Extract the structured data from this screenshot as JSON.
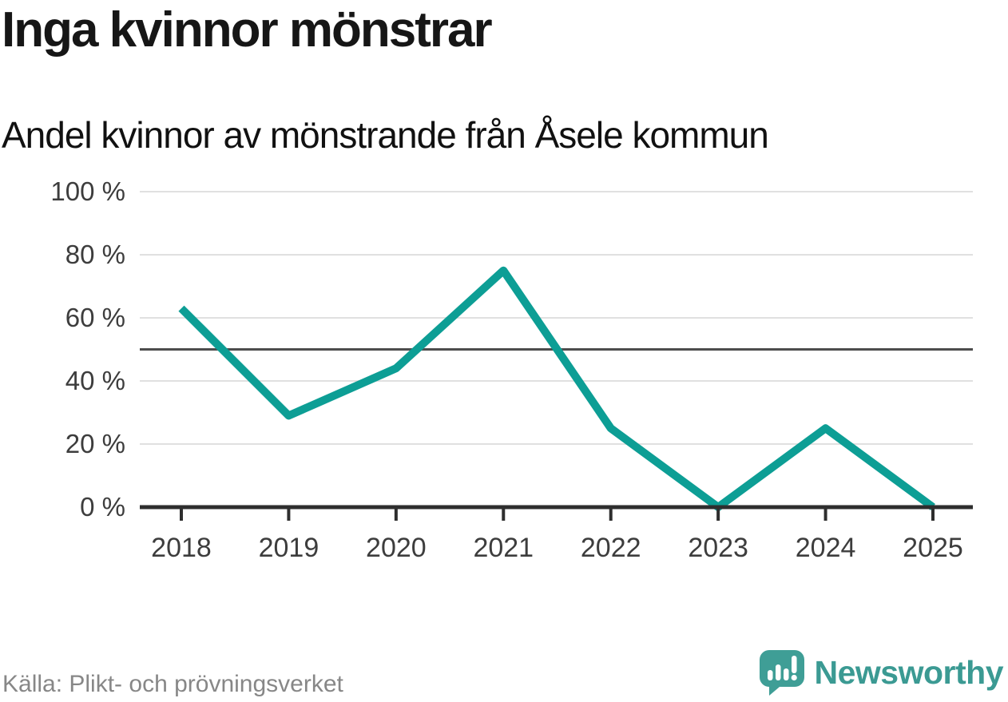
{
  "header": {
    "title": "Inga kvinnor mönstrar",
    "subtitle": "Andel kvinnor av mönstrande från Åsele kommun"
  },
  "chart_data": {
    "type": "line",
    "title": "Inga kvinnor mönstrar",
    "subtitle": "Andel kvinnor av mönstrande från Åsele kommun",
    "x": [
      "2018",
      "2019",
      "2020",
      "2021",
      "2022",
      "2023",
      "2024",
      "2025"
    ],
    "series": [
      {
        "name": "Andel kvinnor av mönstrande, Åsele kommun",
        "values": [
          63,
          29,
          44,
          75,
          25,
          0,
          25,
          0
        ]
      }
    ],
    "xlabel": "",
    "ylabel": "",
    "ylim": [
      0,
      100
    ],
    "yticks": [
      0,
      20,
      40,
      60,
      80,
      100
    ],
    "ytick_labels": [
      "0 %",
      "20 %",
      "40 %",
      "60 %",
      "80 %",
      "100 %"
    ],
    "reference_line_y": 50,
    "grid": true,
    "legend_position": "none",
    "colors": {
      "line": "#0d9e95",
      "gridline": "#e0e0e0",
      "reference_line": "#4d4d4d",
      "axis": "#2e2e2e",
      "tick_label": "#3d3d3d"
    }
  },
  "footer": {
    "source": "Källa: Plikt- och prövningsverket",
    "brand": "Newsworthy",
    "brand_color": "#3b9a93",
    "logo_color": "#3f9e96"
  }
}
